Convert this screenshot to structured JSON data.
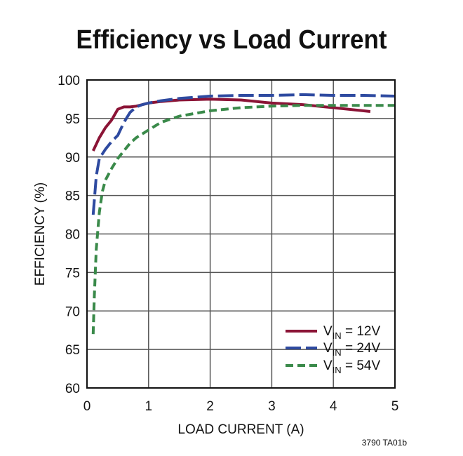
{
  "chart_data": {
    "type": "line",
    "title": "Efficiency vs Load Current",
    "xlabel": "LOAD CURRENT (A)",
    "ylabel": "EFFICIENCY (%)",
    "xlim": [
      0,
      5
    ],
    "ylim": [
      60,
      100
    ],
    "x_ticks": [
      "0",
      "1",
      "2",
      "3",
      "4",
      "5"
    ],
    "y_ticks": [
      "60",
      "65",
      "70",
      "75",
      "80",
      "85",
      "90",
      "95",
      "100"
    ],
    "grid": true,
    "legend_position": "bottom-right",
    "series": [
      {
        "name_main": "V",
        "name_sub": "IN",
        "name_rest": " = 12V",
        "color": "#8b1436",
        "dash": "solid",
        "x": [
          0.1,
          0.2,
          0.3,
          0.4,
          0.5,
          0.6,
          0.7,
          0.8,
          1.0,
          1.2,
          1.5,
          2.0,
          2.5,
          3.0,
          3.5,
          4.0,
          4.6
        ],
        "y": [
          90.8,
          92.5,
          93.8,
          94.8,
          96.2,
          96.5,
          96.5,
          96.6,
          97.0,
          97.2,
          97.4,
          97.5,
          97.4,
          97.0,
          96.8,
          96.4,
          95.9
        ]
      },
      {
        "name_main": "V",
        "name_sub": "IN",
        "name_rest": " = 24V",
        "color": "#2e4aa0",
        "dash": "long-dash",
        "x": [
          0.1,
          0.15,
          0.2,
          0.3,
          0.4,
          0.5,
          0.6,
          0.7,
          0.8,
          0.9,
          1.0,
          1.2,
          1.5,
          2.0,
          2.5,
          3.0,
          3.5,
          4.0,
          4.5,
          5.0
        ],
        "y": [
          82.5,
          87.5,
          89.8,
          91.0,
          92.0,
          92.8,
          94.5,
          95.8,
          96.5,
          96.8,
          97.0,
          97.3,
          97.6,
          97.9,
          98.0,
          98.0,
          98.1,
          98.0,
          98.0,
          97.9
        ]
      },
      {
        "name_main": "V",
        "name_sub": "IN",
        "name_rest": " = 54V",
        "color": "#3a8a4a",
        "dash": "short-dash",
        "x": [
          0.1,
          0.12,
          0.15,
          0.2,
          0.25,
          0.3,
          0.4,
          0.5,
          0.6,
          0.7,
          0.8,
          1.0,
          1.2,
          1.5,
          2.0,
          2.5,
          3.0,
          3.5,
          4.0,
          4.5,
          5.0
        ],
        "y": [
          67.0,
          72.0,
          78.0,
          82.8,
          85.5,
          87.0,
          88.5,
          89.8,
          90.8,
          91.8,
          92.5,
          93.5,
          94.5,
          95.3,
          96.0,
          96.4,
          96.6,
          96.7,
          96.7,
          96.7,
          96.7
        ]
      }
    ]
  },
  "figure_id": "3790 TA01b"
}
